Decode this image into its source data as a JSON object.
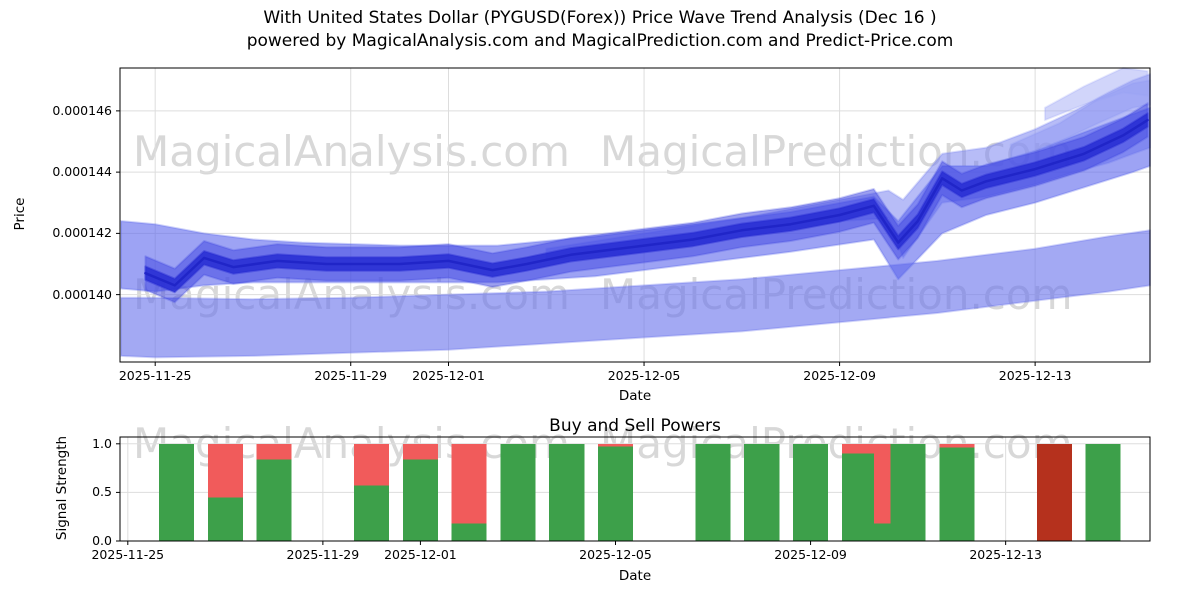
{
  "title": {
    "line1": "With United States Dollar (PYGUSD(Forex)) Price Wave Trend Analysis (Dec 16 )",
    "line2": "powered by MagicalAnalysis.com and MagicalPrediction.com and Predict-Price.com"
  },
  "watermark": {
    "left": "MagicalAnalysis.com",
    "right": "MagicalPrediction.com"
  },
  "palette": {
    "green": "#3da04a",
    "red": "#f15b5b",
    "dark_red": "#b5311d",
    "grid": "#dddddd",
    "spine": "#000000",
    "watermark": "#d8d8d8",
    "blue_line": "#1f24c7"
  },
  "chart_data": [
    {
      "type": "area",
      "title": "Price Wave Trend",
      "ylabel": "Price",
      "xlabel": "Date",
      "x_unit": "days since 2025-11-25",
      "xlim": [
        -0.72,
        20.35
      ],
      "ylim": [
        0.0001378,
        0.0001474
      ],
      "grid": true,
      "xticks": {
        "values": [
          0,
          4,
          6,
          10,
          14,
          18
        ],
        "labels": [
          "2025-11-25",
          "2025-11-29",
          "2025-12-01",
          "2025-12-05",
          "2025-12-09",
          "2025-12-13"
        ]
      },
      "yticks": {
        "values": [
          0.00014,
          0.000142,
          0.000144,
          0.000146
        ],
        "labels": [
          "0.000140",
          "0.000142",
          "0.000144",
          "0.000146"
        ]
      },
      "main_line": {
        "color": "#1f24c7",
        "width": 2.5,
        "days": [
          -0.2,
          0.4,
          1.0,
          1.6,
          2.5,
          3.5,
          5.0,
          6.0,
          6.9,
          7.6,
          8.5,
          10,
          11,
          12,
          13,
          14,
          14.7,
          15.2,
          15.6,
          16.1,
          16.5,
          17,
          18,
          19,
          19.8,
          20.3
        ],
        "values": [
          0.0001407,
          0.0001403,
          0.0001412,
          0.0001409,
          0.0001411,
          0.000141,
          0.000141,
          0.0001411,
          0.0001408,
          0.000141,
          0.0001413,
          0.0001416,
          0.0001418,
          0.0001421,
          0.0001423,
          0.0001426,
          0.0001429,
          0.0001417,
          0.0001424,
          0.0001438,
          0.0001434,
          0.0001437,
          0.0001441,
          0.0001446,
          0.0001452,
          0.0001457
        ]
      },
      "bands": [
        {
          "name": "bottom-wide-band",
          "color": "#6a75ec",
          "opacity": 0.62,
          "days": [
            -0.7,
            0,
            2,
            4,
            6,
            8,
            10,
            12,
            14,
            16,
            18,
            19.5,
            20.35
          ],
          "upper": [
            0.0001399,
            0.0001399,
            0.00013985,
            0.0001399,
            0.00014,
            0.0001401,
            0.0001403,
            0.0001405,
            0.0001408,
            0.0001411,
            0.0001415,
            0.0001419,
            0.0001421
          ],
          "lower": [
            0.000138,
            0.00013795,
            0.000138,
            0.0001381,
            0.0001382,
            0.0001384,
            0.0001386,
            0.0001388,
            0.0001391,
            0.0001394,
            0.0001398,
            0.0001401,
            0.0001403
          ]
        },
        {
          "name": "upper-envelope",
          "color": "#7c85f0",
          "opacity": 0.55,
          "days": [
            8,
            10,
            12,
            14,
            15,
            15.3,
            16.1,
            17,
            18,
            18.8,
            19.5,
            20,
            20.35
          ],
          "upper": [
            0.0001415,
            0.000142,
            0.0001425,
            0.0001431,
            0.0001434,
            0.0001431,
            0.0001446,
            0.0001448,
            0.0001454,
            0.000146,
            0.0001466,
            0.000147,
            0.0001472
          ],
          "lower": [
            0.0001411,
            0.0001414,
            0.0001419,
            0.0001424,
            0.0001425,
            0.0001412,
            0.000143,
            0.0001432,
            0.0001436,
            0.000144,
            0.0001443,
            0.0001446,
            0.0001448
          ]
        },
        {
          "name": "mid-band",
          "color": "#5b66ec",
          "opacity": 0.6,
          "days": [
            -0.7,
            0,
            1,
            2,
            3,
            5,
            7,
            9,
            11,
            13,
            14.7,
            15.2,
            16.1,
            17,
            18,
            19,
            20,
            20.35
          ],
          "upper": [
            0.0001424,
            0.0001423,
            0.000142,
            0.0001418,
            0.0001417,
            0.0001416,
            0.0001416,
            0.0001419,
            0.0001423,
            0.0001427,
            0.0001432,
            0.0001424,
            0.0001442,
            0.0001442,
            0.0001447,
            0.0001453,
            0.0001459,
            0.0001461
          ],
          "lower": [
            0.0001402,
            0.0001401,
            0.0001403,
            0.0001404,
            0.0001404,
            0.0001404,
            0.0001404,
            0.0001406,
            0.000141,
            0.0001414,
            0.0001418,
            0.0001405,
            0.000142,
            0.0001426,
            0.000143,
            0.0001435,
            0.000144,
            0.0001442
          ]
        },
        {
          "name": "finger-top",
          "color": "#8d96f3",
          "opacity": 0.5,
          "days": [
            17.5,
            18.5,
            19.3,
            20,
            20.35
          ],
          "upper": [
            0.0001449,
            0.0001456,
            0.0001464,
            0.0001469,
            0.000147
          ],
          "lower": [
            0.0001444,
            0.000145,
            0.0001456,
            0.0001461,
            0.0001462
          ]
        },
        {
          "name": "finger-upper",
          "color": "#9aa2f5",
          "opacity": 0.45,
          "days": [
            18.2,
            19,
            19.8,
            20.3
          ],
          "upper": [
            0.0001461,
            0.0001468,
            0.0001474,
            0.0001473
          ],
          "lower": [
            0.0001457,
            0.0001462,
            0.0001466,
            0.0001465
          ]
        },
        {
          "name": "inner-band",
          "color": "#3b42e0",
          "opacity": 0.5,
          "offset_from_main": 5.5e-07
        },
        {
          "name": "core-band",
          "color": "#262bd2",
          "opacity": 0.85,
          "offset_from_main": 2.2e-07
        }
      ]
    },
    {
      "type": "bar",
      "title": "Buy and Sell Powers",
      "ylabel": "Signal Strength",
      "xlabel": "Date",
      "x_unit": "days since 2025-11-25",
      "xlim": [
        -0.16,
        20.96
      ],
      "ylim": [
        0,
        1.07
      ],
      "grid": true,
      "bar_width": 0.72,
      "xticks": {
        "values": [
          0,
          4,
          6,
          10,
          14,
          18
        ],
        "labels": [
          "2025-11-25",
          "2025-11-29",
          "2025-12-01",
          "2025-12-05",
          "2025-12-09",
          "2025-12-13"
        ]
      },
      "yticks": {
        "values": [
          0,
          0.5,
          1
        ],
        "labels": [
          "0.0",
          "0.5",
          "1.0"
        ]
      },
      "bars": [
        {
          "date": "2025-11-26",
          "day": 1,
          "green": 1.0,
          "red": 0.0
        },
        {
          "date": "2025-11-27",
          "day": 2,
          "green": 0.45,
          "red": 0.55
        },
        {
          "date": "2025-11-28",
          "day": 3,
          "green": 0.84,
          "red": 0.16
        },
        {
          "date": "2025-11-30",
          "day": 5,
          "green": 0.57,
          "red": 0.43
        },
        {
          "date": "2025-12-01",
          "day": 6,
          "green": 0.84,
          "red": 0.16
        },
        {
          "date": "2025-12-02",
          "day": 7,
          "green": 0.18,
          "red": 0.82
        },
        {
          "date": "2025-12-03",
          "day": 8,
          "green": 1.0,
          "red": 0.0
        },
        {
          "date": "2025-12-04",
          "day": 9,
          "green": 1.0,
          "red": 0.0
        },
        {
          "date": "2025-12-05",
          "day": 10,
          "green": 0.97,
          "red": 0.03
        },
        {
          "date": "2025-12-07",
          "day": 12,
          "green": 1.0,
          "red": 0.0
        },
        {
          "date": "2025-12-08",
          "day": 13,
          "green": 1.0,
          "red": 0.0
        },
        {
          "date": "2025-12-09",
          "day": 14,
          "green": 1.0,
          "red": 0.0
        },
        {
          "date": "2025-12-10",
          "day": 15,
          "green": 0.9,
          "red": 0.1
        },
        {
          "date": "2025-12-10",
          "day": 15.5,
          "green": 0.18,
          "red": 0.82,
          "width": 0.4
        },
        {
          "date": "2025-12-11",
          "day": 16,
          "green": 1.0,
          "red": 0.0
        },
        {
          "date": "2025-12-12",
          "day": 17,
          "green": 0.96,
          "red": 0.04
        },
        {
          "date": "2025-12-14",
          "day": 19,
          "green": 0.0,
          "red": 1.0,
          "shade": "dark_red"
        },
        {
          "date": "2025-12-15",
          "day": 20,
          "green": 1.0,
          "red": 0.0
        }
      ]
    }
  ]
}
